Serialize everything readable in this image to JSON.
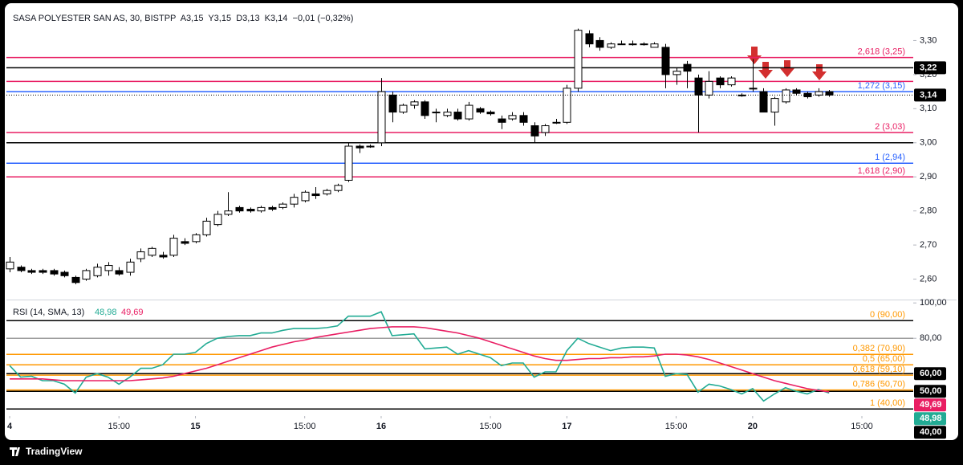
{
  "chart_data": [
    {
      "type": "candlestick",
      "title": "SASA POLYESTER SAN AS, 30, BISTPP  A3,15  Y3,15  D3,13  K3,14  −0,01 (−0,32%)",
      "x": [
        0,
        1,
        2,
        3,
        4,
        5,
        6,
        7,
        8,
        9,
        10,
        11,
        12,
        13,
        14,
        15,
        16,
        17,
        18,
        19,
        20,
        21,
        22,
        23,
        24,
        25,
        26,
        27,
        28,
        29,
        30,
        31,
        32,
        33,
        34,
        35,
        36,
        37,
        38,
        39,
        40,
        41,
        42,
        43,
        44,
        45,
        46,
        47,
        48,
        49,
        50,
        51,
        52,
        53,
        54,
        55,
        56,
        57,
        58,
        59,
        60,
        61,
        62,
        63,
        64,
        65,
        66,
        67,
        68,
        69,
        70,
        71,
        72,
        73,
        74,
        75
      ],
      "candles": {
        "open": [
          2.63,
          2.635,
          2.625,
          2.625,
          2.625,
          2.62,
          2.605,
          2.6,
          2.61,
          2.625,
          2.625,
          2.62,
          2.66,
          2.67,
          2.67,
          2.67,
          2.71,
          2.71,
          2.73,
          2.76,
          2.79,
          2.81,
          2.805,
          2.8,
          2.81,
          2.81,
          2.82,
          2.83,
          2.85,
          2.85,
          2.86,
          2.89,
          2.99,
          2.99,
          3.0,
          3.14,
          3.09,
          3.11,
          3.12,
          3.09,
          3.08,
          3.09,
          3.07,
          3.1,
          3.09,
          3.07,
          3.07,
          3.08,
          3.05,
          3.03,
          3.06,
          3.06,
          3.16,
          3.32,
          3.3,
          3.28,
          3.29,
          3.29,
          3.29,
          3.28,
          3.28,
          3.2,
          3.23,
          3.19,
          3.14,
          3.19,
          3.17,
          3.14,
          3.16,
          3.15,
          3.09,
          3.12,
          3.155,
          3.145,
          3.14,
          3.15
        ],
        "high": [
          2.665,
          2.64,
          2.63,
          2.63,
          2.63,
          2.625,
          2.61,
          2.63,
          2.645,
          2.65,
          2.635,
          2.66,
          2.69,
          2.695,
          2.68,
          2.73,
          2.72,
          2.735,
          2.78,
          2.8,
          2.855,
          2.815,
          2.81,
          2.815,
          2.815,
          2.825,
          2.85,
          2.86,
          2.87,
          2.865,
          2.88,
          3.0,
          2.995,
          2.995,
          3.19,
          3.15,
          3.115,
          3.125,
          3.125,
          3.1,
          3.1,
          3.1,
          3.12,
          3.105,
          3.095,
          3.08,
          3.09,
          3.09,
          3.06,
          3.055,
          3.07,
          3.17,
          3.335,
          3.33,
          3.31,
          3.295,
          3.3,
          3.3,
          3.295,
          3.295,
          3.29,
          3.22,
          3.24,
          3.2,
          3.21,
          3.195,
          3.195,
          3.145,
          3.245,
          3.16,
          3.135,
          3.16,
          3.16,
          3.15,
          3.16,
          3.155
        ],
        "low": [
          2.62,
          2.62,
          2.615,
          2.615,
          2.61,
          2.605,
          2.585,
          2.595,
          2.605,
          2.61,
          2.61,
          2.61,
          2.65,
          2.665,
          2.66,
          2.665,
          2.7,
          2.705,
          2.725,
          2.755,
          2.785,
          2.795,
          2.795,
          2.795,
          2.8,
          2.805,
          2.81,
          2.825,
          2.835,
          2.845,
          2.855,
          2.885,
          2.97,
          2.985,
          2.99,
          3.06,
          3.085,
          3.1,
          3.07,
          3.06,
          3.075,
          3.065,
          3.065,
          3.085,
          3.08,
          3.04,
          3.065,
          3.05,
          3.0,
          3.02,
          3.055,
          3.055,
          3.15,
          3.28,
          3.27,
          3.275,
          3.29,
          3.285,
          3.285,
          3.28,
          3.16,
          3.17,
          3.16,
          3.03,
          3.13,
          3.16,
          3.165,
          3.135,
          3.15,
          3.09,
          3.05,
          3.115,
          3.14,
          3.13,
          3.135,
          3.135
        ],
        "close": [
          2.65,
          2.625,
          2.62,
          2.62,
          2.615,
          2.61,
          2.59,
          2.625,
          2.635,
          2.64,
          2.615,
          2.65,
          2.68,
          2.69,
          2.665,
          2.72,
          2.705,
          2.73,
          2.77,
          2.79,
          2.8,
          2.8,
          2.8,
          2.81,
          2.805,
          2.82,
          2.84,
          2.855,
          2.845,
          2.86,
          2.875,
          2.99,
          2.985,
          2.99,
          3.15,
          3.09,
          3.11,
          3.12,
          3.08,
          3.09,
          3.09,
          3.07,
          3.11,
          3.09,
          3.085,
          3.06,
          3.08,
          3.06,
          3.02,
          3.05,
          3.06,
          3.16,
          3.33,
          3.29,
          3.28,
          3.29,
          3.29,
          3.29,
          3.29,
          3.29,
          3.2,
          3.21,
          3.21,
          3.14,
          3.18,
          3.17,
          3.19,
          3.14,
          3.16,
          3.09,
          3.13,
          3.155,
          3.145,
          3.135,
          3.15,
          3.14
        ]
      },
      "up_color": "#ffffff",
      "down_color": "#000000",
      "xlim": [
        -0.3,
        82.7
      ],
      "ylim": [
        2.54,
        3.4
      ],
      "yticks": [
        {
          "value": 2.6,
          "label": "2,60"
        },
        {
          "value": 2.7,
          "label": "2,70"
        },
        {
          "value": 2.8,
          "label": "2,80"
        },
        {
          "value": 2.9,
          "label": "2,90"
        },
        {
          "value": 3.0,
          "label": "3,00"
        },
        {
          "value": 3.1,
          "label": "3,10"
        },
        {
          "value": 3.2,
          "label": "3,20"
        },
        {
          "value": 3.3,
          "label": "3,30"
        }
      ],
      "grid": false,
      "fib_levels": [
        {
          "value": 3.25,
          "label": "2,618 (3,25)",
          "color": "#e91e63"
        },
        {
          "value": 3.15,
          "label": "1,272 (3,15)",
          "color": "#2962ff"
        },
        {
          "value": 3.03,
          "label": "2 (3,03)",
          "color": "#e91e63"
        },
        {
          "value": 2.94,
          "label": "1 (2,94)",
          "color": "#2962ff"
        },
        {
          "value": 2.9,
          "label": "1,618 (2,90)",
          "color": "#e91e63"
        }
      ],
      "lines": [
        {
          "value": 3.22,
          "color": "#000000"
        },
        {
          "value": 3.18,
          "color": "#e91e63"
        },
        {
          "value": 3.0,
          "color": "#000000"
        }
      ],
      "axis_marks": [
        {
          "value": 3.22,
          "label": "3,22",
          "color": "#000000"
        },
        {
          "value": 3.14,
          "label": "3,14",
          "color": "#000000",
          "dotted": true
        }
      ]
    },
    {
      "type": "line",
      "title": "RSI (14, SMA, 13)",
      "x": [
        0,
        1,
        2,
        3,
        4,
        5,
        6,
        7,
        8,
        9,
        10,
        11,
        12,
        13,
        14,
        15,
        16,
        17,
        18,
        19,
        20,
        21,
        22,
        23,
        24,
        25,
        26,
        27,
        28,
        29,
        30,
        31,
        32,
        33,
        34,
        35,
        36,
        37,
        38,
        39,
        40,
        41,
        42,
        43,
        44,
        45,
        46,
        47,
        48,
        49,
        50,
        51,
        52,
        53,
        54,
        55,
        56,
        57,
        58,
        59,
        60,
        61,
        62,
        63,
        64,
        65,
        66,
        67,
        68,
        69,
        70,
        71,
        72,
        73,
        74,
        75
      ],
      "series": [
        {
          "name": "RSI",
          "color": "#22ab94",
          "last_label": "48,98",
          "values": [
            64.5,
            58,
            58.5,
            56,
            56,
            54,
            49,
            58,
            60,
            58,
            54,
            58,
            63,
            63,
            65,
            71,
            71,
            72,
            77,
            80,
            81,
            81.5,
            81.5,
            83,
            83,
            84.5,
            85.5,
            85.5,
            85.5,
            86,
            87,
            92.5,
            92.5,
            92.5,
            95,
            81.5,
            82,
            82.5,
            74,
            74.5,
            75,
            71,
            73,
            71,
            69,
            64.5,
            66,
            66,
            58,
            61,
            61,
            73,
            80,
            77,
            75,
            73,
            74.5,
            75,
            75,
            74.5,
            58.5,
            60,
            59.5,
            49.5,
            54,
            53,
            51,
            48.5,
            51.5,
            44.5,
            48.5,
            52,
            50,
            48.5,
            51,
            48.98
          ]
        },
        {
          "name": "SMA",
          "color": "#e91e63",
          "last_label": "49,69",
          "values": [
            57,
            57,
            57,
            57,
            56.5,
            56,
            56,
            56,
            56,
            56,
            56,
            56,
            56.5,
            57,
            57.5,
            58.5,
            60,
            61.5,
            63,
            65,
            67,
            69,
            71,
            73,
            75,
            76.5,
            78,
            79,
            80.5,
            81.5,
            82.5,
            83.5,
            84.5,
            85.5,
            86,
            86.5,
            86.5,
            86.5,
            86,
            85,
            84,
            83,
            81.5,
            80,
            78,
            76,
            74,
            72,
            70,
            68.5,
            67.5,
            67.5,
            68,
            68.5,
            68.5,
            69,
            69,
            69.5,
            69.5,
            70,
            71,
            71,
            70.5,
            69.5,
            68,
            66,
            64,
            62,
            60,
            58,
            56,
            54.5,
            53,
            51.5,
            50.5,
            49.69
          ]
        }
      ],
      "xlim": [
        -0.3,
        82.7
      ],
      "xticks": [
        {
          "value": 0,
          "label": "4"
        },
        {
          "value": 10,
          "label": "15:00"
        },
        {
          "value": 17,
          "label": "15"
        },
        {
          "value": 27,
          "label": "15:00"
        },
        {
          "value": 34,
          "label": "16"
        },
        {
          "value": 44,
          "label": "15:00"
        },
        {
          "value": 51,
          "label": "17"
        },
        {
          "value": 61,
          "label": "15:00"
        },
        {
          "value": 68,
          "label": "20"
        },
        {
          "value": 78,
          "label": "15:00"
        }
      ],
      "ylim": [
        36,
        101
      ],
      "yticks": [
        {
          "value": 100,
          "label": "100,00"
        },
        {
          "value": 80,
          "label": "80,00"
        }
      ],
      "grid": false,
      "fib_label_color": "#ff9800",
      "fib_levels": [
        {
          "value": 90,
          "label": "0 (90,00)",
          "color": "#000000"
        },
        {
          "value": 70.9,
          "label": "0,382 (70,90)",
          "color": "#ff9800"
        },
        {
          "value": 65,
          "label": "0,5 (65,00)",
          "color": "#ff9800"
        },
        {
          "value": 59.1,
          "label": "0,618 (59,10)",
          "color": "#ff9800"
        },
        {
          "value": 50.7,
          "label": "0,786 (50,70)",
          "color": "#ff9800"
        },
        {
          "value": 40,
          "label": "1 (40,00)",
          "color": "#000000"
        }
      ],
      "lines": [
        {
          "value": 80,
          "color": "#9e9e9e"
        },
        {
          "value": 60,
          "color": "#000000"
        },
        {
          "value": 50,
          "color": "#000000"
        }
      ],
      "axis_marks": [
        {
          "value": 60,
          "label": "60,00",
          "color": "#000000"
        },
        {
          "value": 50,
          "label": "50,00",
          "color": "#000000"
        },
        {
          "value": 40,
          "label": "40,00",
          "color": "#000000"
        }
      ]
    }
  ],
  "footer": {
    "brand": "TradingView"
  }
}
